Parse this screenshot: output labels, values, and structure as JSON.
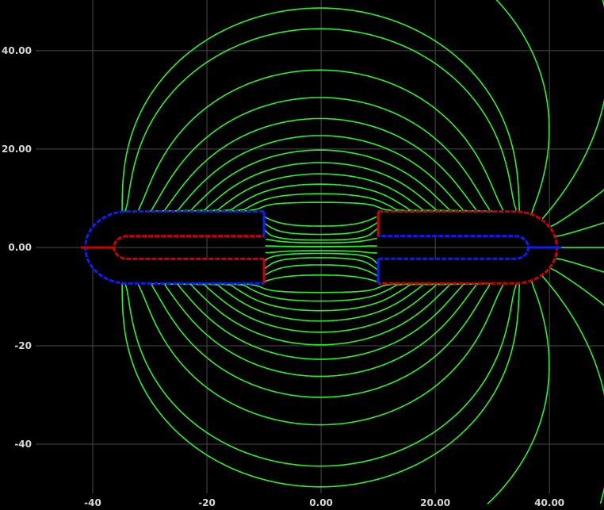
{
  "chart_data": {
    "type": "field-plot",
    "title": "",
    "xlabel": "",
    "ylabel": "",
    "xlim": [
      -50,
      49
    ],
    "ylim": [
      -50,
      49.5
    ],
    "grid": true,
    "x_ticks": [
      {
        "value": -40,
        "label": "-40"
      },
      {
        "value": -20,
        "label": "-20"
      },
      {
        "value": 0,
        "label": "0.00"
      },
      {
        "value": 20,
        "label": "20.00"
      },
      {
        "value": 40,
        "label": "40.00"
      }
    ],
    "y_ticks": [
      {
        "value": 40,
        "label": "40.00"
      },
      {
        "value": 20,
        "label": "20.00"
      },
      {
        "value": 0,
        "label": "0.00"
      },
      {
        "value": -20,
        "label": "-20"
      },
      {
        "value": -40,
        "label": "-40"
      }
    ],
    "conductors": [
      {
        "name": "left",
        "outer_polarity": "negative",
        "x_open": -10,
        "x_bend_center": -34,
        "outer_half_height": 7.3,
        "inner_half_height": 2.3
      },
      {
        "name": "right",
        "outer_polarity": "positive",
        "x_open": 10,
        "x_bend_center": 34,
        "outer_half_height": 7.3,
        "inner_half_height": 2.3
      }
    ],
    "colors": {
      "background": "#000000",
      "grid": "#4a4a4a",
      "field_lines": "#2dee2d",
      "positive_edge": "#cc0000",
      "negative_edge": "#0b1cff",
      "conductor_fill": "#000000",
      "tick_text": "#d8d8d8"
    }
  }
}
